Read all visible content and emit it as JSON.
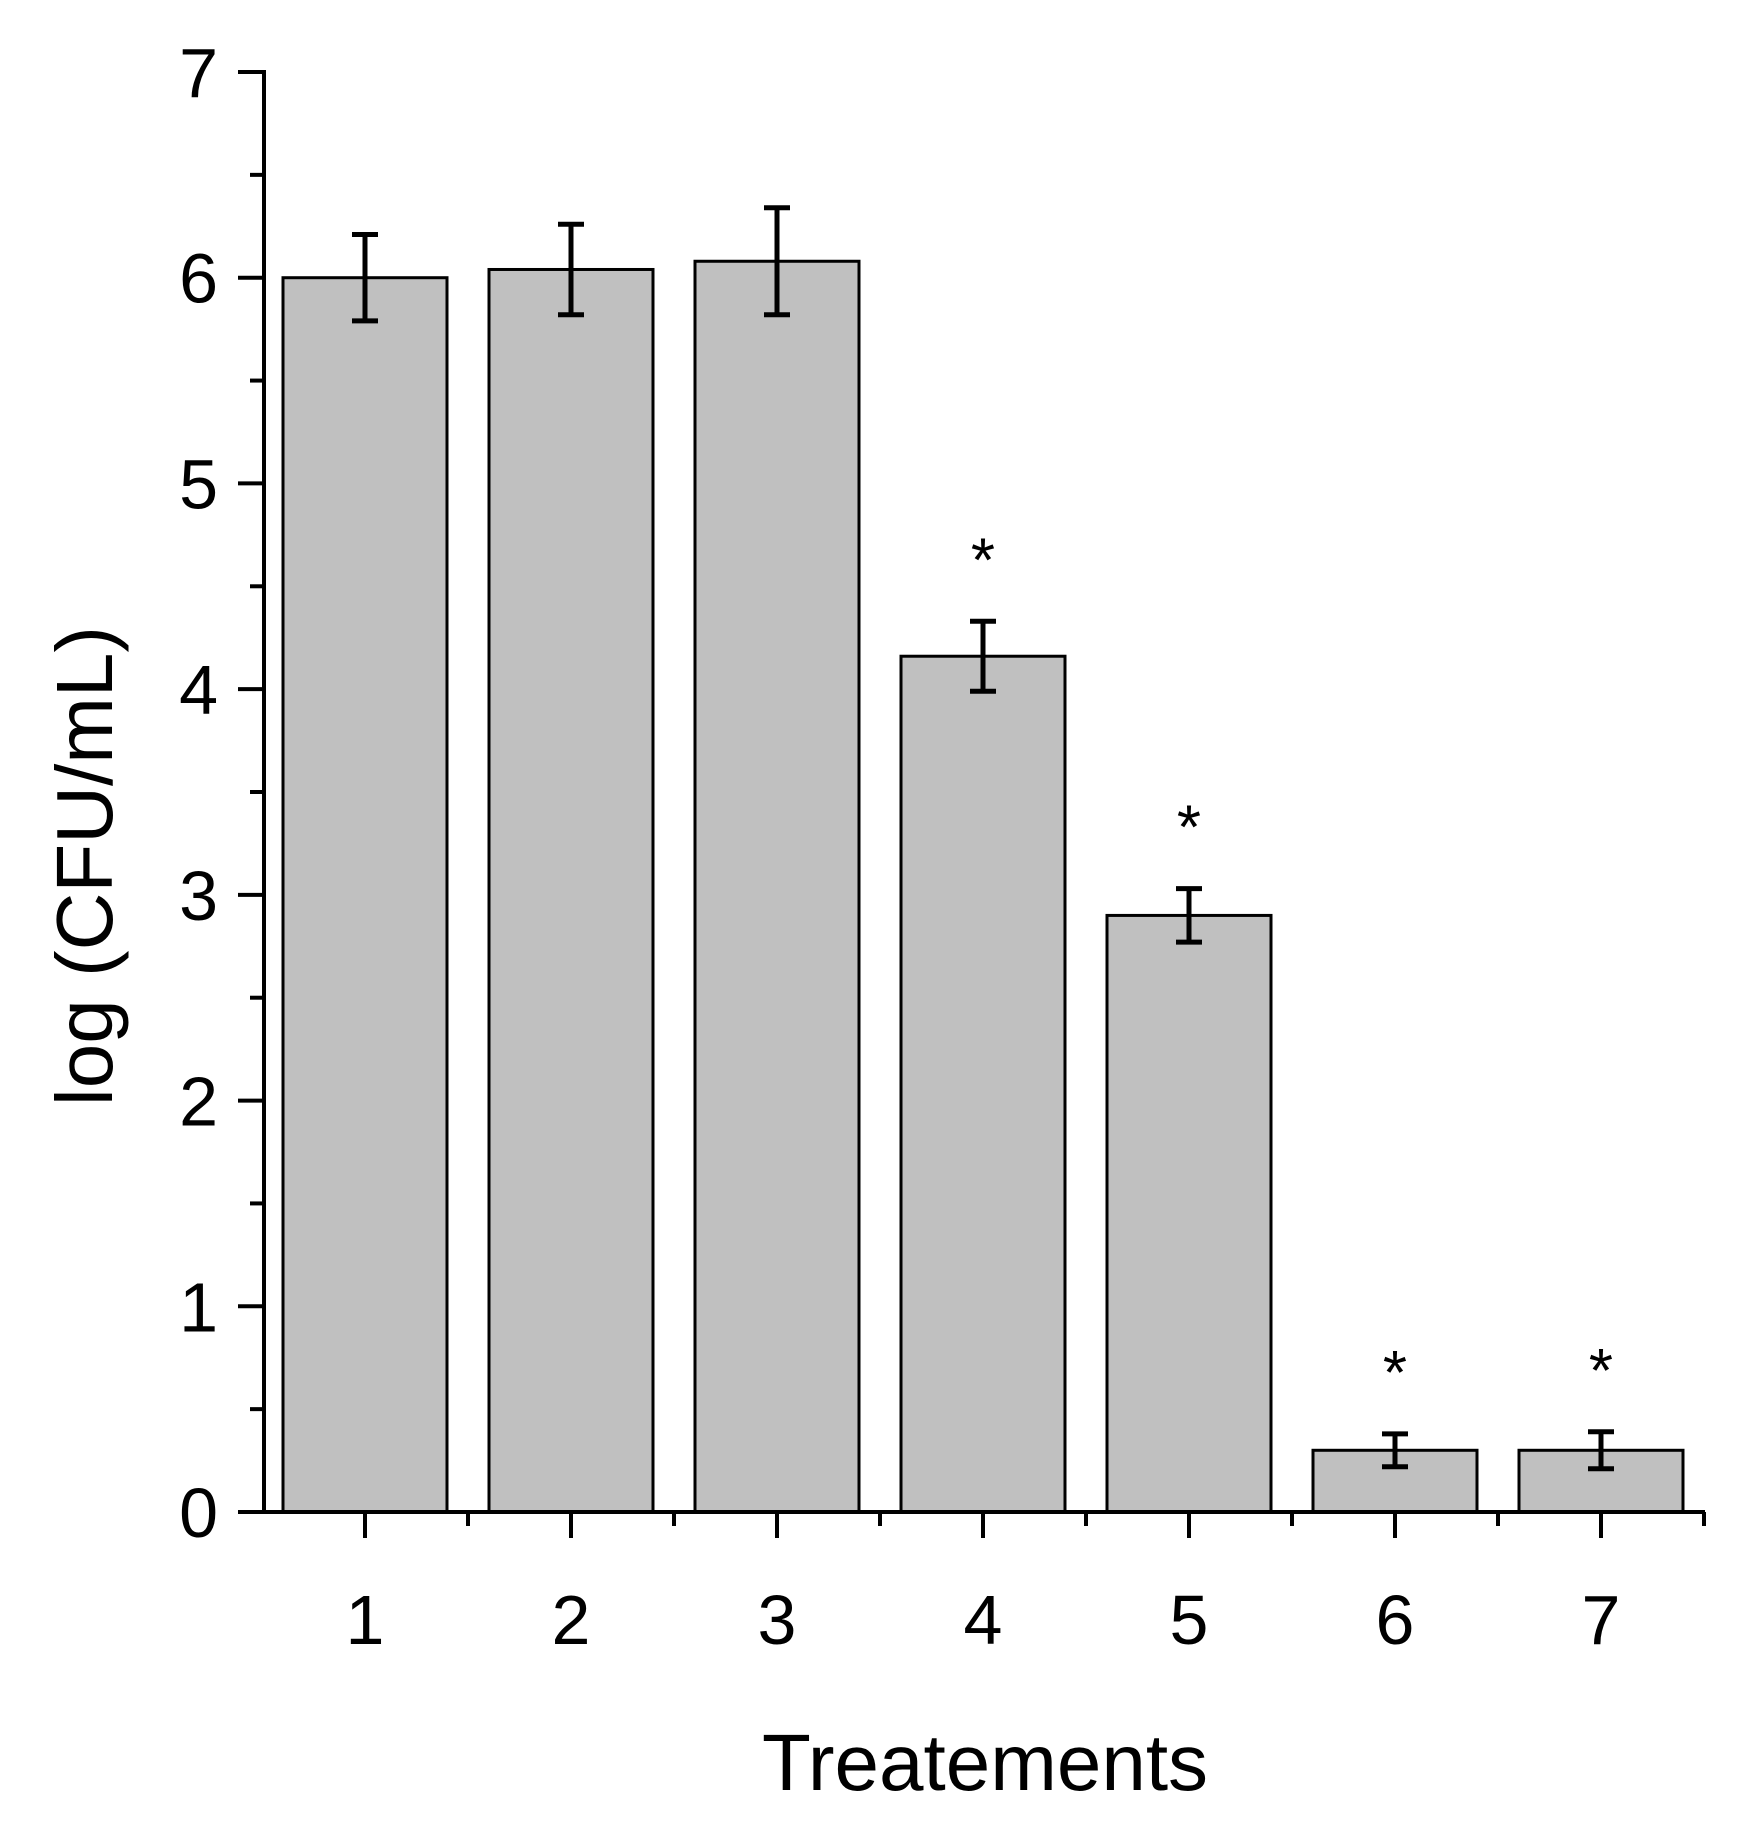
{
  "chart_data": {
    "type": "bar",
    "title": "",
    "xlabel": "Treatements",
    "ylabel": "log (CFU/mL)",
    "categories": [
      "1",
      "2",
      "3",
      "4",
      "5",
      "6",
      "7"
    ],
    "values": [
      6.0,
      6.04,
      6.08,
      4.16,
      2.9,
      0.3,
      0.3
    ],
    "errors": [
      0.21,
      0.22,
      0.26,
      0.17,
      0.13,
      0.08,
      0.09
    ],
    "significance": [
      "",
      "",
      "",
      "*",
      "*",
      "*",
      "*"
    ],
    "ylim": [
      0,
      7
    ],
    "yticks": [
      "0",
      "1",
      "2",
      "3",
      "4",
      "5",
      "6",
      "7"
    ],
    "bar_color": "#c0c0c0",
    "grid": false,
    "legend": "none"
  }
}
